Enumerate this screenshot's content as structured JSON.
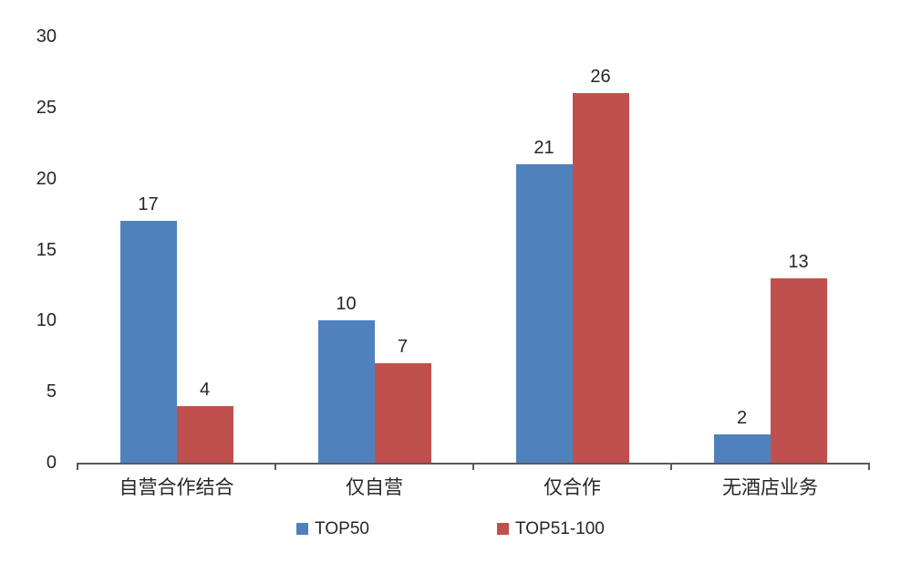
{
  "chart_data": {
    "type": "bar",
    "categories": [
      "自营合作结合",
      "仅自营",
      "仅合作",
      "无酒店业务"
    ],
    "series": [
      {
        "name": "TOP50",
        "color": "#4F81BD",
        "values": [
          17,
          10,
          21,
          2
        ]
      },
      {
        "name": "TOP51-100",
        "color": "#C0504D",
        "values": [
          4,
          7,
          26,
          13
        ]
      }
    ],
    "title": "",
    "xlabel": "",
    "ylabel": "",
    "ylim": [
      0,
      30
    ],
    "yticks": [
      0,
      5,
      10,
      15,
      20,
      25,
      30
    ],
    "grid": false,
    "legend_position": "bottom",
    "data_labels": true
  },
  "colors": {
    "axis": "#595959",
    "text": "#262626",
    "background": "#ffffff"
  }
}
